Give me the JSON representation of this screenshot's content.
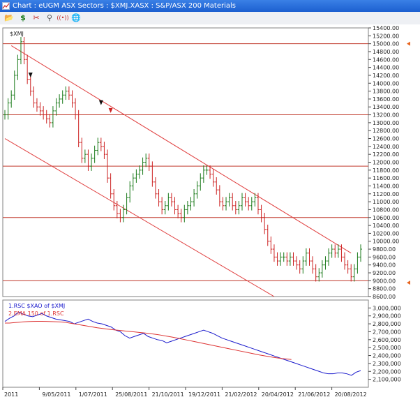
{
  "window": {
    "title": "Chart : eUGM ASX Sectors : $XMJ.XASX : S&P/ASX 200 Materials"
  },
  "toolbar": {
    "buttons": [
      {
        "name": "open-folder-icon",
        "glyph": "📂"
      },
      {
        "name": "dollar-icon",
        "glyph": "$"
      },
      {
        "name": "scissors-icon",
        "glyph": "✂"
      },
      {
        "name": "link-icon",
        "glyph": "⚲"
      },
      {
        "name": "broadcast-icon",
        "glyph": "((•))"
      },
      {
        "name": "globe-icon",
        "glyph": "🌐"
      }
    ]
  },
  "chart_data": [
    {
      "type": "line",
      "title": "$XMJ",
      "ylim": [
        8600,
        15400
      ],
      "y_ticks": [
        "15400.00",
        "15200.00",
        "15000.00",
        "14800.00",
        "14600.00",
        "14400.00",
        "14200.00",
        "14000.00",
        "13800.00",
        "13600.00",
        "13400.00",
        "13200.00",
        "13000.00",
        "12800.00",
        "12600.00",
        "12400.00",
        "12200.00",
        "12000.00",
        "11800.00",
        "11600.00",
        "11400.00",
        "11200.00",
        "11000.00",
        "10800.00",
        "10600.00",
        "10400.00",
        "10200.00",
        "10000.00",
        "9800.00",
        "9600.00",
        "9400.00",
        "9200.00",
        "9000.00",
        "8800.00",
        "8600.00"
      ],
      "x_tick_labels": [
        "2011",
        "9/05/2011",
        "1/07/2011",
        "25/08/2011",
        "21/10/2011",
        "19/12/2011",
        "21/02/2012",
        "20/04/2012",
        "21/06/2012",
        "20/08/2012"
      ],
      "series": [
        {
          "values": [
            13200,
            13500,
            13700,
            14200,
            14600,
            15050,
            14600,
            14100,
            13800,
            13500,
            13400,
            13300,
            13200,
            13100,
            13000,
            13300,
            13500,
            13600,
            13700,
            13800,
            13700,
            13500,
            13200,
            12500,
            12100,
            12200,
            11900,
            12100,
            12300,
            12500,
            12400,
            12200,
            11600,
            11200,
            10900,
            10700,
            10600,
            10800,
            11100,
            11400,
            11600,
            11700,
            11800,
            12000,
            12100,
            11900,
            11500,
            11200,
            11000,
            10800,
            10900,
            11100,
            11000,
            10800,
            10700,
            10600,
            10800,
            10900,
            11000,
            11200,
            11400,
            11600,
            11800,
            11800,
            11700,
            11500,
            11300,
            11000,
            10900,
            11000,
            11100,
            10900,
            10800,
            10900,
            11100,
            11000,
            10900,
            11000,
            11100,
            10800,
            10600,
            10300,
            10000,
            9800,
            9600,
            9500,
            9600,
            9600,
            9500,
            9600,
            9500,
            9400,
            9300,
            9500,
            9700,
            9500,
            9300,
            9100,
            9200,
            9400,
            9500,
            9700,
            9800,
            9700,
            9800,
            9600,
            9400,
            9300,
            9100,
            9300,
            9600,
            9800
          ]
        }
      ],
      "horizontal_lines": [
        15000,
        13200,
        11900,
        10600,
        9000
      ],
      "trend_lines": [
        {
          "from": [
            2,
            14950
          ],
          "to": [
            108,
            9700
          ]
        },
        {
          "from": [
            0,
            12600
          ],
          "to": [
            84,
            8600
          ]
        }
      ],
      "markers": [
        {
          "kind": "down-arrow",
          "x": 8,
          "y": 14200,
          "color": "#111111"
        },
        {
          "kind": "down-arrow",
          "x": 33,
          "y": 13300,
          "color": "#cc2222"
        },
        {
          "kind": "down-arrow",
          "x": 30,
          "y": 13500,
          "color": "#111111"
        }
      ],
      "right_flags": [
        15000,
        8950
      ]
    },
    {
      "type": "line",
      "ylim": [
        2000000,
        3100000
      ],
      "y_ticks": [
        "3,000,000",
        "2,900,000",
        "2,800,000",
        "2,700,000",
        "2,600,000",
        "2,500,000",
        "2,400,000",
        "2,300,000",
        "2,200,000",
        "2,100,000"
      ],
      "series": [
        {
          "name": "1.RSC $XAO of $XMJ",
          "color": "#1a1acc",
          "values": [
            2830000,
            2870000,
            2900000,
            2950000,
            2920000,
            2900000,
            2890000,
            2910000,
            2930000,
            2900000,
            2880000,
            2860000,
            2850000,
            2840000,
            2830000,
            2800000,
            2820000,
            2840000,
            2860000,
            2830000,
            2810000,
            2800000,
            2780000,
            2760000,
            2720000,
            2700000,
            2650000,
            2620000,
            2640000,
            2660000,
            2680000,
            2640000,
            2620000,
            2600000,
            2590000,
            2560000,
            2580000,
            2600000,
            2620000,
            2640000,
            2660000,
            2680000,
            2700000,
            2720000,
            2700000,
            2680000,
            2650000,
            2620000,
            2600000,
            2580000,
            2560000,
            2540000,
            2520000,
            2500000,
            2480000,
            2460000,
            2440000,
            2420000,
            2400000,
            2380000,
            2360000,
            2340000,
            2320000,
            2300000,
            2280000,
            2260000,
            2240000,
            2220000,
            2200000,
            2180000,
            2170000,
            2170000,
            2180000,
            2180000,
            2170000,
            2150000,
            2190000,
            2210000
          ]
        },
        {
          "name": "2.EMA 150 of 1.RSC",
          "color": "#dd3333",
          "values": [
            2810000,
            2810000,
            2815000,
            2820000,
            2825000,
            2828000,
            2830000,
            2832000,
            2832000,
            2830000,
            2828000,
            2826000,
            2824000,
            2820000,
            2810000,
            2800000,
            2790000,
            2780000,
            2770000,
            2760000,
            2750000,
            2742000,
            2735000,
            2728000,
            2722000,
            2716000,
            2710000,
            2704000,
            2698000,
            2692000,
            2686000,
            2680000,
            2672000,
            2664000,
            2655000,
            2645000,
            2635000,
            2624000,
            2612000,
            2600000,
            2588000,
            2576000,
            2564000,
            2552000,
            2540000,
            2528000,
            2516000,
            2504000,
            2492000,
            2480000,
            2468000,
            2456000,
            2444000,
            2432000,
            2420000,
            2408000,
            2398000,
            2388000,
            2378000,
            2370000,
            2362000,
            2356000,
            2350000
          ]
        }
      ]
    }
  ]
}
